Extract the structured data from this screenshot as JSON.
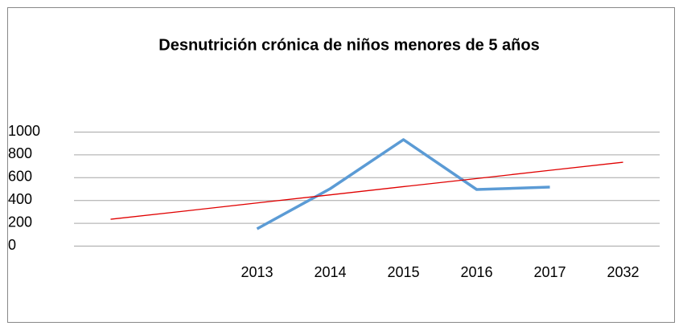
{
  "chart_data": {
    "type": "line",
    "title": "Desnutrición crónica de niños  menores de 5 años",
    "categories": [
      null,
      null,
      "2013",
      "2014",
      "2015",
      "2016",
      "2017",
      "2032"
    ],
    "series": [
      {
        "color": "#5b9bd5",
        "values": [
          null,
          null,
          148,
          500,
          930,
          493,
          514,
          null
        ]
      },
      {
        "color": "#e00000",
        "values": [
          232,
          303,
          375,
          446,
          518,
          589,
          661,
          732
        ]
      }
    ],
    "ylim": [
      0,
      1000
    ],
    "yticks": [
      0,
      200,
      400,
      600,
      800,
      1000
    ],
    "grid": true
  }
}
